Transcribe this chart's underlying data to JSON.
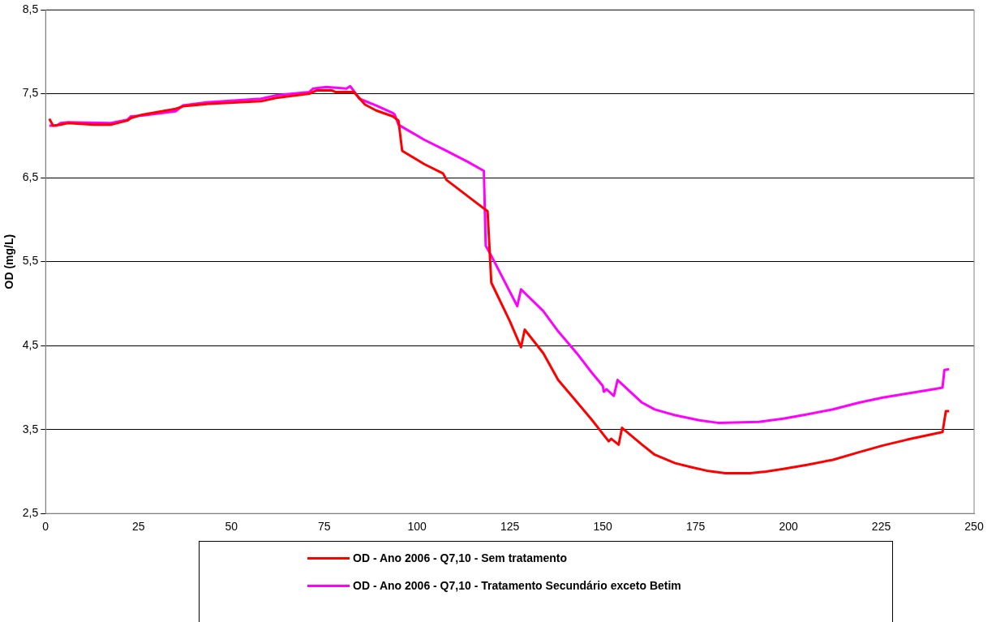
{
  "chart_data": {
    "type": "line",
    "ylabel": "OD (mg/L)",
    "xlim": [
      0,
      250
    ],
    "xticks": [
      0,
      25,
      50,
      75,
      100,
      125,
      150,
      175,
      200,
      225,
      250
    ],
    "ylim": [
      2.5,
      8.5
    ],
    "yticks": [
      {
        "value": 2.5,
        "label": "2,5"
      },
      {
        "value": 3.5,
        "label": "3,5"
      },
      {
        "value": 4.5,
        "label": "4,5"
      },
      {
        "value": 5.5,
        "label": "5,5"
      },
      {
        "value": 6.5,
        "label": "6,5"
      },
      {
        "value": 7.5,
        "label": "7,5"
      },
      {
        "value": 8.5,
        "label": "8,5"
      }
    ],
    "grid": "y",
    "legend": "bottom",
    "marker": "none",
    "line_style": "solid",
    "series": [
      {
        "name": "OD - Ano 2006 - Q7,10 - Sem tratamento",
        "color": "#ff0000",
        "x": [
          1,
          2,
          4,
          6,
          13,
          17.5,
          22,
          23,
          26,
          35,
          37,
          44,
          58,
          62,
          71,
          73,
          77,
          78,
          83,
          86,
          89,
          93.5,
          95,
          96,
          102,
          107,
          108,
          116,
          119,
          120,
          125,
          128,
          129,
          134,
          138,
          143,
          147,
          151.6,
          152.3,
          154.3,
          155.2,
          160.6,
          164,
          169.5,
          174,
          178,
          183,
          189.6,
          194,
          198.6,
          205,
          212,
          219,
          225.4,
          232,
          241.5,
          242.4,
          243.3
        ],
        "values": [
          7.2,
          7.12,
          7.13,
          7.15,
          7.13,
          7.13,
          7.18,
          7.21,
          7.25,
          7.32,
          7.35,
          7.38,
          7.41,
          7.45,
          7.5,
          7.54,
          7.54,
          7.52,
          7.52,
          7.37,
          7.3,
          7.23,
          7.18,
          6.82,
          6.66,
          6.55,
          6.47,
          6.2,
          6.1,
          5.25,
          4.79,
          4.48,
          4.69,
          4.41,
          4.09,
          3.83,
          3.62,
          3.36,
          3.39,
          3.32,
          3.52,
          3.32,
          3.2,
          3.1,
          3.05,
          3.01,
          2.98,
          2.98,
          3.0,
          3.03,
          3.08,
          3.14,
          3.23,
          3.31,
          3.38,
          3.47,
          3.72,
          3.72
        ]
      },
      {
        "name": "OD - Ano 2006 - Q7,10 - Tratamento Secundário exceto Betim",
        "color": "#ff00ff",
        "x": [
          1,
          3,
          4,
          6,
          17.5,
          22,
          23,
          26,
          35,
          37,
          44,
          58,
          62,
          71,
          72,
          75.6,
          81,
          82,
          84.5,
          89,
          93.5,
          94,
          95,
          102,
          107,
          113.6,
          118,
          118.5,
          120,
          127,
          128,
          134,
          138,
          143,
          147,
          150,
          150.3,
          151,
          153,
          154,
          160.6,
          164,
          169.5,
          176,
          181,
          192,
          198.6,
          205,
          212,
          219,
          225.4,
          232,
          239,
          241.5,
          242,
          243.3
        ],
        "values": [
          7.12,
          7.12,
          7.15,
          7.16,
          7.15,
          7.19,
          7.23,
          7.24,
          7.29,
          7.36,
          7.4,
          7.44,
          7.48,
          7.52,
          7.56,
          7.58,
          7.56,
          7.59,
          7.44,
          7.36,
          7.27,
          7.25,
          7.13,
          6.95,
          6.84,
          6.69,
          6.58,
          5.69,
          5.57,
          4.97,
          5.17,
          4.91,
          4.67,
          4.41,
          4.18,
          4.02,
          3.95,
          3.98,
          3.9,
          4.09,
          3.82,
          3.74,
          3.67,
          3.61,
          3.58,
          3.59,
          3.63,
          3.68,
          3.74,
          3.82,
          3.88,
          3.93,
          3.98,
          4.0,
          4.21,
          4.22
        ]
      }
    ]
  }
}
